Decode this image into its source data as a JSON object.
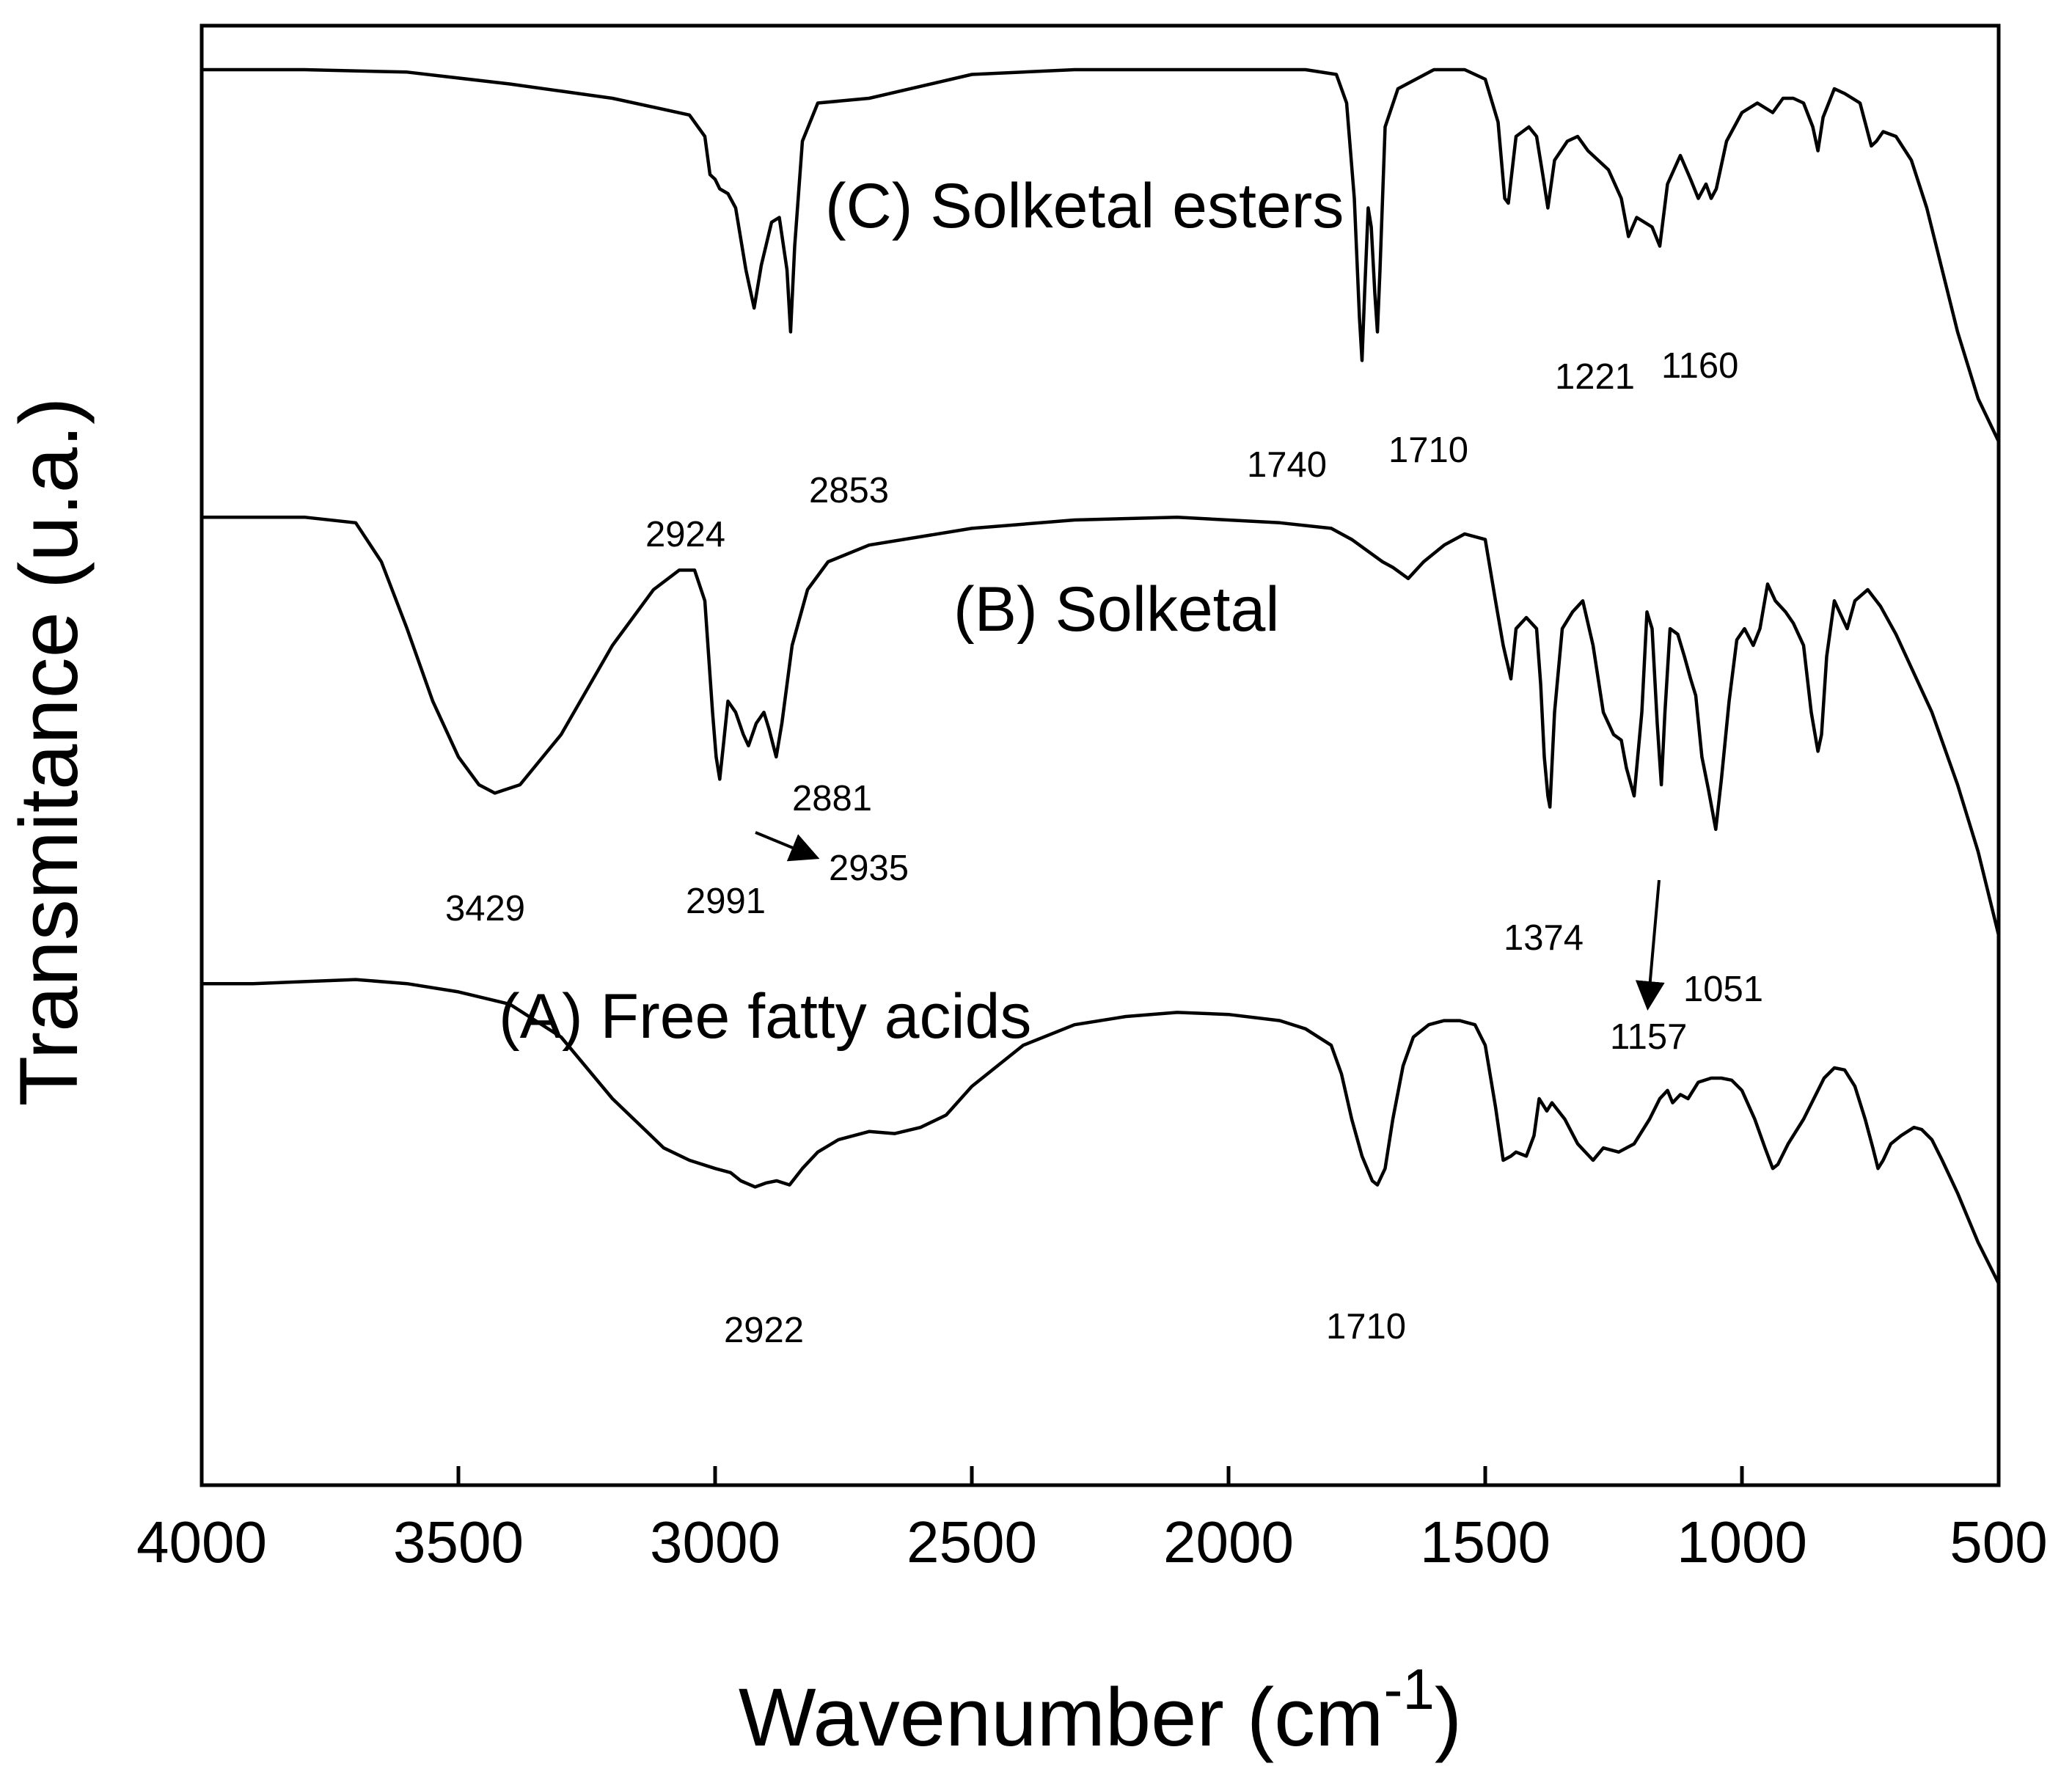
{
  "chart_data": {
    "type": "line",
    "title": "",
    "xlabel": "Wavenumber (cm",
    "xlabel_superscript": "-1",
    "xlabel_close": ")",
    "ylabel": "Transmitance (u.a.)",
    "xlim": [
      4000,
      500
    ],
    "x_reversed": true,
    "y_ticks_shown": false,
    "xticks": [
      "4000",
      "3500",
      "3000",
      "2500",
      "2000",
      "1500",
      "1000",
      "500"
    ],
    "series": [
      {
        "name": "(C) Solketal esters",
        "label": "(C) Solketal esters",
        "points": [
          [
            4000,
            0.97
          ],
          [
            3800,
            0.97
          ],
          [
            3600,
            0.965
          ],
          [
            3400,
            0.94
          ],
          [
            3200,
            0.91
          ],
          [
            3050,
            0.875
          ],
          [
            3020,
            0.83
          ],
          [
            3010,
            0.75
          ],
          [
            3000,
            0.74
          ],
          [
            2991,
            0.72
          ],
          [
            2975,
            0.71
          ],
          [
            2960,
            0.68
          ],
          [
            2940,
            0.55
          ],
          [
            2924,
            0.47
          ],
          [
            2910,
            0.56
          ],
          [
            2890,
            0.65
          ],
          [
            2875,
            0.66
          ],
          [
            2860,
            0.55
          ],
          [
            2853,
            0.42
          ],
          [
            2845,
            0.6
          ],
          [
            2830,
            0.82
          ],
          [
            2800,
            0.9
          ],
          [
            2700,
            0.91
          ],
          [
            2500,
            0.96
          ],
          [
            2300,
            0.97
          ],
          [
            2000,
            0.97
          ],
          [
            1850,
            0.97
          ],
          [
            1790,
            0.96
          ],
          [
            1770,
            0.9
          ],
          [
            1755,
            0.7
          ],
          [
            1745,
            0.45
          ],
          [
            1740,
            0.36
          ],
          [
            1735,
            0.5
          ],
          [
            1728,
            0.68
          ],
          [
            1722,
            0.64
          ],
          [
            1715,
            0.5
          ],
          [
            1710,
            0.42
          ],
          [
            1705,
            0.55
          ],
          [
            1695,
            0.85
          ],
          [
            1670,
            0.93
          ],
          [
            1600,
            0.97
          ],
          [
            1540,
            0.97
          ],
          [
            1500,
            0.95
          ],
          [
            1475,
            0.86
          ],
          [
            1462,
            0.7
          ],
          [
            1455,
            0.69
          ],
          [
            1440,
            0.83
          ],
          [
            1415,
            0.85
          ],
          [
            1400,
            0.83
          ],
          [
            1388,
            0.75
          ],
          [
            1378,
            0.68
          ],
          [
            1365,
            0.78
          ],
          [
            1340,
            0.82
          ],
          [
            1320,
            0.83
          ],
          [
            1300,
            0.8
          ],
          [
            1260,
            0.76
          ],
          [
            1235,
            0.7
          ],
          [
            1221,
            0.62
          ],
          [
            1205,
            0.66
          ],
          [
            1190,
            0.65
          ],
          [
            1175,
            0.64
          ],
          [
            1160,
            0.6
          ],
          [
            1145,
            0.73
          ],
          [
            1120,
            0.79
          ],
          [
            1100,
            0.74
          ],
          [
            1085,
            0.7
          ],
          [
            1070,
            0.73
          ],
          [
            1060,
            0.7
          ],
          [
            1050,
            0.72
          ],
          [
            1030,
            0.82
          ],
          [
            1000,
            0.88
          ],
          [
            970,
            0.9
          ],
          [
            940,
            0.88
          ],
          [
            920,
            0.91
          ],
          [
            900,
            0.91
          ],
          [
            880,
            0.9
          ],
          [
            862,
            0.85
          ],
          [
            852,
            0.8
          ],
          [
            842,
            0.87
          ],
          [
            820,
            0.93
          ],
          [
            800,
            0.92
          ],
          [
            770,
            0.9
          ],
          [
            748,
            0.81
          ],
          [
            738,
            0.82
          ],
          [
            725,
            0.84
          ],
          [
            700,
            0.83
          ],
          [
            670,
            0.78
          ],
          [
            640,
            0.68
          ],
          [
            610,
            0.55
          ],
          [
            580,
            0.42
          ],
          [
            540,
            0.28
          ],
          [
            500,
            0.19
          ]
        ]
      },
      {
        "name": "(B) Solketal",
        "label": "(B) Solketal",
        "points": [
          [
            4000,
            0.95
          ],
          [
            3900,
            0.95
          ],
          [
            3800,
            0.95
          ],
          [
            3700,
            0.94
          ],
          [
            3650,
            0.87
          ],
          [
            3600,
            0.75
          ],
          [
            3550,
            0.62
          ],
          [
            3500,
            0.52
          ],
          [
            3460,
            0.47
          ],
          [
            3429,
            0.455
          ],
          [
            3380,
            0.47
          ],
          [
            3300,
            0.56
          ],
          [
            3200,
            0.72
          ],
          [
            3120,
            0.82
          ],
          [
            3070,
            0.855
          ],
          [
            3040,
            0.855
          ],
          [
            3020,
            0.8
          ],
          [
            3005,
            0.6
          ],
          [
            2998,
            0.52
          ],
          [
            2991,
            0.48
          ],
          [
            2984,
            0.54
          ],
          [
            2975,
            0.62
          ],
          [
            2960,
            0.6
          ],
          [
            2945,
            0.56
          ],
          [
            2935,
            0.54
          ],
          [
            2920,
            0.58
          ],
          [
            2905,
            0.6
          ],
          [
            2895,
            0.57
          ],
          [
            2881,
            0.52
          ],
          [
            2870,
            0.58
          ],
          [
            2850,
            0.72
          ],
          [
            2820,
            0.82
          ],
          [
            2780,
            0.87
          ],
          [
            2700,
            0.9
          ],
          [
            2500,
            0.93
          ],
          [
            2300,
            0.945
          ],
          [
            2100,
            0.95
          ],
          [
            1900,
            0.94
          ],
          [
            1800,
            0.93
          ],
          [
            1760,
            0.91
          ],
          [
            1700,
            0.87
          ],
          [
            1680,
            0.86
          ],
          [
            1665,
            0.85
          ],
          [
            1650,
            0.84
          ],
          [
            1620,
            0.87
          ],
          [
            1580,
            0.9
          ],
          [
            1540,
            0.92
          ],
          [
            1500,
            0.91
          ],
          [
            1480,
            0.8
          ],
          [
            1465,
            0.72
          ],
          [
            1450,
            0.66
          ],
          [
            1440,
            0.75
          ],
          [
            1420,
            0.77
          ],
          [
            1400,
            0.75
          ],
          [
            1392,
            0.65
          ],
          [
            1385,
            0.52
          ],
          [
            1378,
            0.45
          ],
          [
            1374,
            0.43
          ],
          [
            1365,
            0.6
          ],
          [
            1350,
            0.75
          ],
          [
            1330,
            0.78
          ],
          [
            1310,
            0.8
          ],
          [
            1290,
            0.72
          ],
          [
            1270,
            0.6
          ],
          [
            1250,
            0.56
          ],
          [
            1235,
            0.55
          ],
          [
            1225,
            0.5
          ],
          [
            1210,
            0.45
          ],
          [
            1195,
            0.6
          ],
          [
            1185,
            0.78
          ],
          [
            1175,
            0.75
          ],
          [
            1165,
            0.58
          ],
          [
            1157,
            0.47
          ],
          [
            1150,
            0.6
          ],
          [
            1140,
            0.75
          ],
          [
            1125,
            0.74
          ],
          [
            1112,
            0.7
          ],
          [
            1100,
            0.66
          ],
          [
            1090,
            0.63
          ],
          [
            1078,
            0.52
          ],
          [
            1065,
            0.46
          ],
          [
            1051,
            0.39
          ],
          [
            1040,
            0.48
          ],
          [
            1025,
            0.62
          ],
          [
            1010,
            0.73
          ],
          [
            995,
            0.75
          ],
          [
            978,
            0.72
          ],
          [
            965,
            0.75
          ],
          [
            950,
            0.83
          ],
          [
            935,
            0.8
          ],
          [
            915,
            0.78
          ],
          [
            900,
            0.76
          ],
          [
            880,
            0.72
          ],
          [
            865,
            0.6
          ],
          [
            852,
            0.53
          ],
          [
            845,
            0.56
          ],
          [
            835,
            0.7
          ],
          [
            820,
            0.8
          ],
          [
            810,
            0.78
          ],
          [
            795,
            0.75
          ],
          [
            780,
            0.8
          ],
          [
            755,
            0.82
          ],
          [
            730,
            0.79
          ],
          [
            700,
            0.74
          ],
          [
            670,
            0.68
          ],
          [
            630,
            0.6
          ],
          [
            580,
            0.47
          ],
          [
            540,
            0.35
          ],
          [
            500,
            0.2
          ]
        ]
      },
      {
        "name": "(A) Free fatty acids",
        "label": "(A) Free fatty acids",
        "points": [
          [
            4000,
            0.95
          ],
          [
            3900,
            0.95
          ],
          [
            3800,
            0.955
          ],
          [
            3700,
            0.96
          ],
          [
            3600,
            0.95
          ],
          [
            3500,
            0.93
          ],
          [
            3400,
            0.9
          ],
          [
            3300,
            0.82
          ],
          [
            3200,
            0.67
          ],
          [
            3100,
            0.55
          ],
          [
            3050,
            0.52
          ],
          [
            3000,
            0.5
          ],
          [
            2970,
            0.49
          ],
          [
            2950,
            0.47
          ],
          [
            2922,
            0.455
          ],
          [
            2900,
            0.465
          ],
          [
            2880,
            0.47
          ],
          [
            2855,
            0.46
          ],
          [
            2830,
            0.5
          ],
          [
            2800,
            0.54
          ],
          [
            2760,
            0.57
          ],
          [
            2700,
            0.59
          ],
          [
            2650,
            0.585
          ],
          [
            2600,
            0.6
          ],
          [
            2550,
            0.63
          ],
          [
            2500,
            0.7
          ],
          [
            2400,
            0.8
          ],
          [
            2300,
            0.85
          ],
          [
            2200,
            0.87
          ],
          [
            2100,
            0.88
          ],
          [
            2000,
            0.875
          ],
          [
            1900,
            0.86
          ],
          [
            1850,
            0.84
          ],
          [
            1800,
            0.8
          ],
          [
            1780,
            0.73
          ],
          [
            1760,
            0.62
          ],
          [
            1740,
            0.53
          ],
          [
            1720,
            0.47
          ],
          [
            1710,
            0.46
          ],
          [
            1695,
            0.5
          ],
          [
            1680,
            0.62
          ],
          [
            1660,
            0.75
          ],
          [
            1640,
            0.82
          ],
          [
            1610,
            0.85
          ],
          [
            1580,
            0.86
          ],
          [
            1550,
            0.86
          ],
          [
            1520,
            0.85
          ],
          [
            1500,
            0.8
          ],
          [
            1480,
            0.65
          ],
          [
            1465,
            0.52
          ],
          [
            1450,
            0.53
          ],
          [
            1440,
            0.54
          ],
          [
            1420,
            0.53
          ],
          [
            1405,
            0.58
          ],
          [
            1395,
            0.67
          ],
          [
            1380,
            0.64
          ],
          [
            1370,
            0.66
          ],
          [
            1345,
            0.62
          ],
          [
            1320,
            0.56
          ],
          [
            1290,
            0.52
          ],
          [
            1270,
            0.55
          ],
          [
            1240,
            0.54
          ],
          [
            1210,
            0.56
          ],
          [
            1180,
            0.62
          ],
          [
            1160,
            0.67
          ],
          [
            1145,
            0.69
          ],
          [
            1135,
            0.66
          ],
          [
            1120,
            0.68
          ],
          [
            1105,
            0.67
          ],
          [
            1085,
            0.71
          ],
          [
            1060,
            0.72
          ],
          [
            1040,
            0.72
          ],
          [
            1020,
            0.715
          ],
          [
            1000,
            0.69
          ],
          [
            975,
            0.62
          ],
          [
            955,
            0.55
          ],
          [
            940,
            0.5
          ],
          [
            930,
            0.51
          ],
          [
            910,
            0.56
          ],
          [
            880,
            0.62
          ],
          [
            860,
            0.67
          ],
          [
            840,
            0.72
          ],
          [
            820,
            0.745
          ],
          [
            800,
            0.74
          ],
          [
            780,
            0.7
          ],
          [
            760,
            0.62
          ],
          [
            745,
            0.55
          ],
          [
            735,
            0.5
          ],
          [
            725,
            0.52
          ],
          [
            710,
            0.56
          ],
          [
            690,
            0.58
          ],
          [
            665,
            0.6
          ],
          [
            650,
            0.595
          ],
          [
            630,
            0.57
          ],
          [
            610,
            0.52
          ],
          [
            580,
            0.44
          ],
          [
            540,
            0.32
          ],
          [
            500,
            0.22
          ]
        ]
      }
    ],
    "annotations": {
      "C": [
        "2924",
        "2853",
        "1740",
        "1710",
        "1221",
        "1160"
      ],
      "B": [
        "3429",
        "2991",
        "2935",
        "2881",
        "1374",
        "1157",
        "1051"
      ],
      "A": [
        "2922",
        "1710"
      ]
    }
  }
}
